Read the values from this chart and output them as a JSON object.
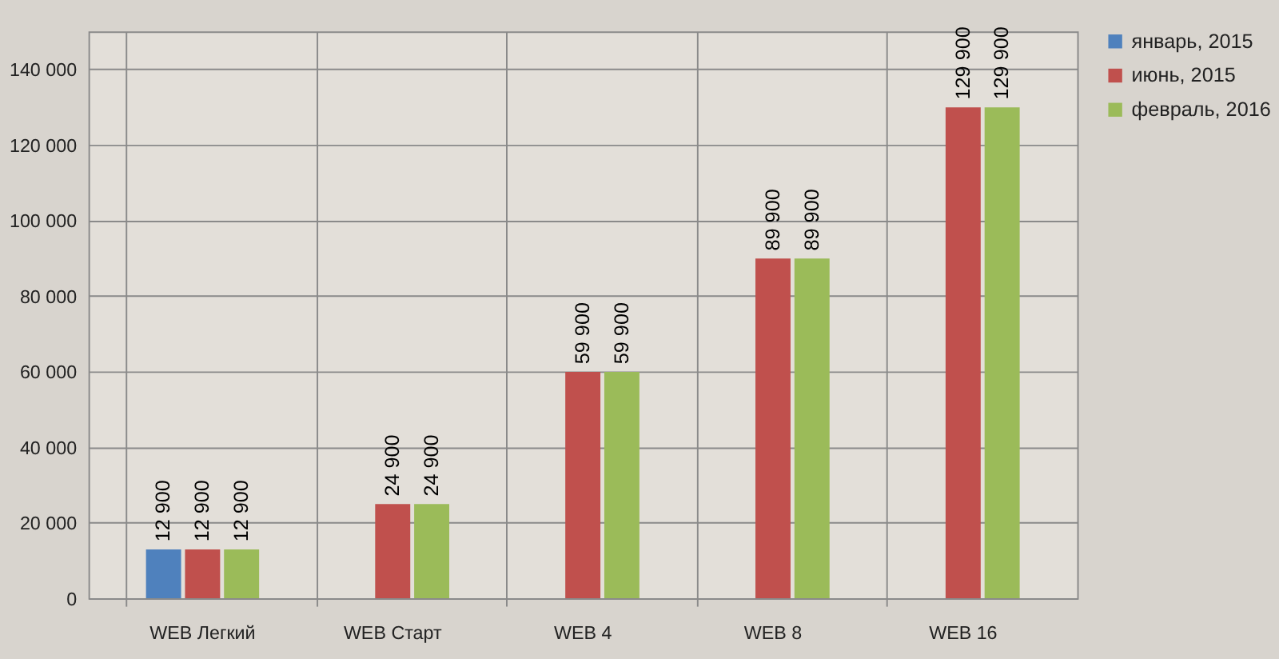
{
  "chart_data": {
    "type": "bar",
    "categories": [
      "WEB Легкий",
      "WEB Старт",
      "WEB 4",
      "WEB 8",
      "WEB 16"
    ],
    "series": [
      {
        "name": "январь, 2015",
        "color": "#4f81bd",
        "values": [
          12900,
          null,
          null,
          null,
          null
        ],
        "value_labels": [
          "12 900",
          null,
          null,
          null,
          null
        ]
      },
      {
        "name": "июнь, 2015",
        "color": "#c0504d",
        "values": [
          12900,
          24900,
          59900,
          89900,
          129900
        ],
        "value_labels": [
          "12 900",
          "24 900",
          "59 900",
          "89 900",
          "129 900"
        ]
      },
      {
        "name": "февраль, 2016",
        "color": "#9bbb59",
        "values": [
          12900,
          24900,
          59900,
          89900,
          129900
        ],
        "value_labels": [
          "12 900",
          "24 900",
          "59 900",
          "89 900",
          "129 900"
        ]
      }
    ],
    "ylim": [
      0,
      150000
    ],
    "yticks": [
      {
        "value": 0,
        "label": "0"
      },
      {
        "value": 20000,
        "label": "20 000"
      },
      {
        "value": 40000,
        "label": "40 000"
      },
      {
        "value": 60000,
        "label": "60 000"
      },
      {
        "value": 80000,
        "label": "80 000"
      },
      {
        "value": 100000,
        "label": "100 000"
      },
      {
        "value": 120000,
        "label": "120 000"
      },
      {
        "value": 140000,
        "label": "140 000"
      }
    ],
    "grid": true,
    "legend": "right"
  }
}
